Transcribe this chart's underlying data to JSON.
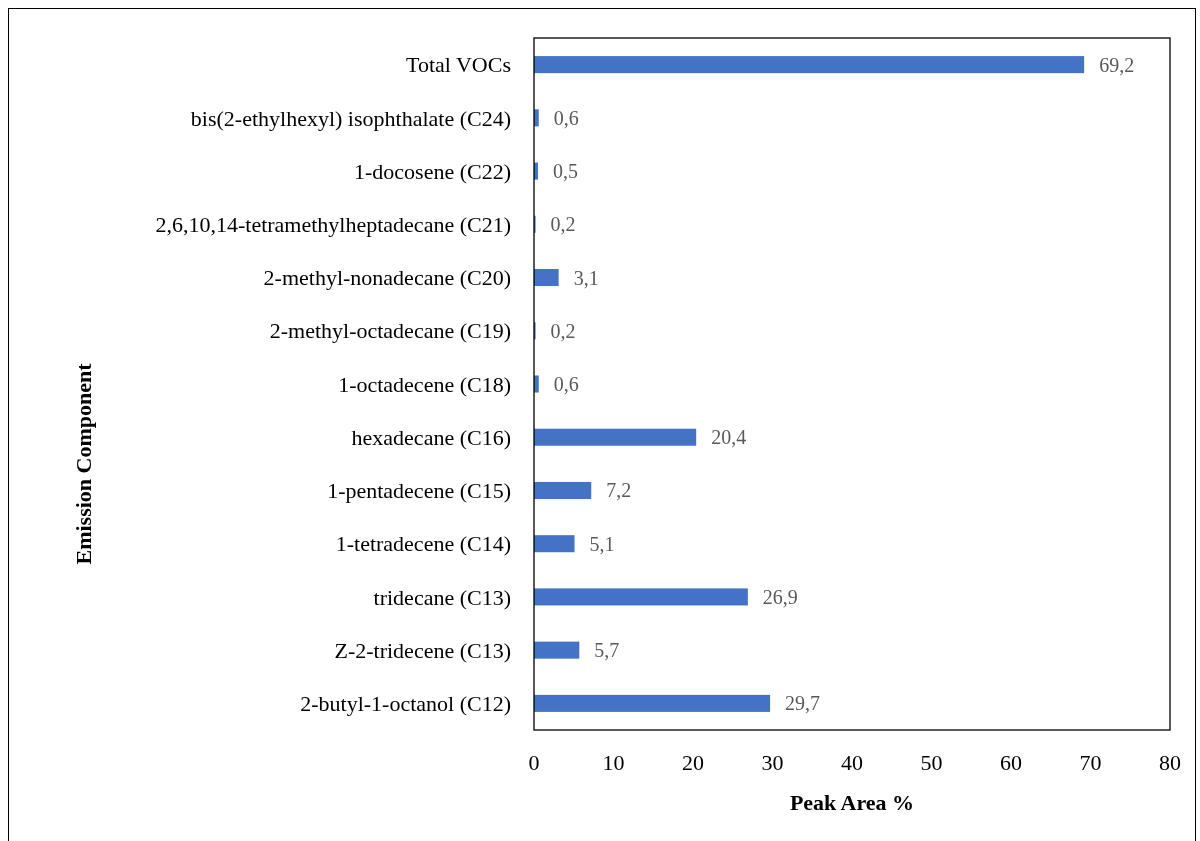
{
  "chart_data": {
    "type": "bar",
    "orientation": "horizontal",
    "xlabel": "Peak Area %",
    "ylabel": "Emission Component",
    "categories": [
      "Total VOCs",
      "bis(2-ethylhexyl) isophthalate (C24)",
      "1-docosene (C22)",
      "2,6,10,14-tetramethylheptadecane (C21)",
      "2-methyl-nonadecane (C20)",
      "2-methyl-octadecane (C19)",
      "1-octadecene (C18)",
      "hexadecane (C16)",
      "1-pentadecene (C15)",
      "1-tetradecene (C14)",
      "tridecane (C13)",
      "Z-2-tridecene (C13)",
      "2-butyl-1-octanol  (C12)"
    ],
    "values": [
      69.2,
      0.6,
      0.5,
      0.2,
      3.1,
      0.2,
      0.6,
      20.4,
      7.2,
      5.1,
      26.9,
      5.7,
      29.7
    ],
    "value_labels": [
      "69,2",
      "0,6",
      "0,5",
      "0,2",
      "3,1",
      "0,2",
      "0,6",
      "20,4",
      "7,2",
      "5,1",
      "26,9",
      "5,7",
      "29,7"
    ],
    "color": "#4472c4",
    "xlim": [
      0,
      80
    ],
    "xticks": [
      0,
      10,
      20,
      30,
      40,
      50,
      60,
      70,
      80
    ],
    "grid": false
  }
}
